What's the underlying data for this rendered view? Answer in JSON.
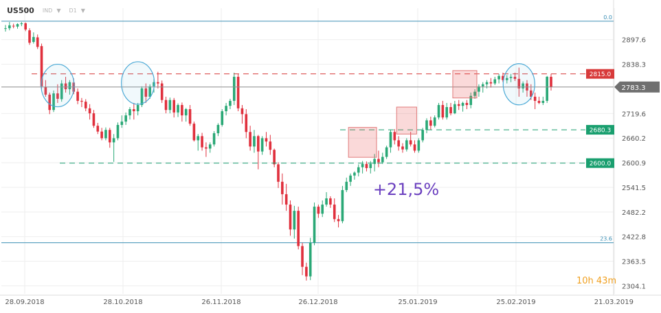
{
  "header": {
    "symbol": "US500",
    "market": "IND",
    "timeframe": "D1"
  },
  "timer": "10h 43m",
  "colors": {
    "up": "#2aa876",
    "down": "#e0303d",
    "up_light": "#9fd8bf",
    "down_light": "#eea3aa",
    "fibo": "#3b8fb5",
    "support": "#1a9f6f",
    "resistance": "#d83a3a",
    "price_line": "#8c8c8c",
    "annotation": "#6a3fbf",
    "timer": "#f0a020"
  },
  "chart_data": {
    "type": "candlestick",
    "title": "US500",
    "ylim": [
      2290,
      2960
    ],
    "y_ticks": [
      "2897.6",
      "2838.3",
      "2719.6",
      "2660.2",
      "2600.9",
      "2541.5",
      "2482.2",
      "2422.8",
      "2363.5",
      "2304.1"
    ],
    "x_ticks": [
      "28.09.2018",
      "28.10.2018",
      "26.11.2018",
      "26.12.2018",
      "25.01.2019",
      "25.02.2019",
      "21.03.2019"
    ],
    "fibonacci_levels": [
      {
        "label": "0.0",
        "value": 2942
      },
      {
        "label": "23.6",
        "value": 2408
      }
    ],
    "horizontal_levels": [
      {
        "label": "2815.0",
        "value": 2815.0,
        "style": "dashed",
        "kind": "resistance"
      },
      {
        "label": "2680.3",
        "value": 2680.3,
        "style": "dashed",
        "kind": "support"
      },
      {
        "label": "2600.0",
        "value": 2600.0,
        "style": "dashed",
        "kind": "support"
      }
    ],
    "current_price": {
      "label": "2783.3",
      "value": 2783.3
    },
    "annotation": "+21,5%",
    "candles": [
      [
        2925,
        2933,
        2917,
        2925
      ],
      [
        2925,
        2940,
        2920,
        2932
      ],
      [
        2931,
        2936,
        2925,
        2930
      ],
      [
        2929,
        2937,
        2924,
        2935
      ],
      [
        2935,
        2940,
        2930,
        2937
      ],
      [
        2937,
        2939,
        2918,
        2922
      ],
      [
        2920,
        2925,
        2885,
        2890
      ],
      [
        2892,
        2915,
        2888,
        2904
      ],
      [
        2903,
        2910,
        2875,
        2880
      ],
      [
        2882,
        2888,
        2778,
        2785
      ],
      [
        2784,
        2800,
        2760,
        2765
      ],
      [
        2765,
        2770,
        2718,
        2728
      ],
      [
        2728,
        2775,
        2723,
        2768
      ],
      [
        2768,
        2790,
        2745,
        2755
      ],
      [
        2754,
        2800,
        2748,
        2792
      ],
      [
        2792,
        2808,
        2770,
        2778
      ],
      [
        2778,
        2800,
        2765,
        2795
      ],
      [
        2794,
        2804,
        2766,
        2772
      ],
      [
        2772,
        2780,
        2742,
        2750
      ],
      [
        2750,
        2757,
        2735,
        2748
      ],
      [
        2748,
        2754,
        2725,
        2732
      ],
      [
        2732,
        2742,
        2705,
        2720
      ],
      [
        2720,
        2728,
        2685,
        2690
      ],
      [
        2690,
        2697,
        2670,
        2676
      ],
      [
        2676,
        2685,
        2655,
        2660
      ],
      [
        2660,
        2686,
        2655,
        2680
      ],
      [
        2680,
        2685,
        2637,
        2650
      ],
      [
        2650,
        2670,
        2603,
        2660
      ],
      [
        2660,
        2698,
        2655,
        2692
      ],
      [
        2692,
        2715,
        2685,
        2700
      ],
      [
        2700,
        2722,
        2692,
        2715
      ],
      [
        2715,
        2735,
        2705,
        2730
      ],
      [
        2730,
        2745,
        2705,
        2725
      ],
      [
        2725,
        2745,
        2715,
        2740
      ],
      [
        2740,
        2785,
        2735,
        2780
      ],
      [
        2780,
        2792,
        2745,
        2760
      ],
      [
        2760,
        2790,
        2755,
        2785
      ],
      [
        2785,
        2803,
        2770,
        2795
      ],
      [
        2795,
        2820,
        2780,
        2792
      ],
      [
        2792,
        2799,
        2745,
        2752
      ],
      [
        2752,
        2760,
        2720,
        2728
      ],
      [
        2728,
        2758,
        2720,
        2752
      ],
      [
        2752,
        2757,
        2710,
        2722
      ],
      [
        2722,
        2744,
        2711,
        2740
      ],
      [
        2740,
        2746,
        2700,
        2715
      ],
      [
        2715,
        2733,
        2700,
        2730
      ],
      [
        2730,
        2740,
        2690,
        2695
      ],
      [
        2695,
        2700,
        2652,
        2655
      ],
      [
        2655,
        2670,
        2630,
        2665
      ],
      [
        2665,
        2673,
        2630,
        2638
      ],
      [
        2638,
        2650,
        2615,
        2635
      ],
      [
        2635,
        2650,
        2625,
        2645
      ],
      [
        2645,
        2677,
        2640,
        2672
      ],
      [
        2672,
        2696,
        2665,
        2692
      ],
      [
        2692,
        2730,
        2688,
        2725
      ],
      [
        2725,
        2745,
        2715,
        2738
      ],
      [
        2738,
        2755,
        2730,
        2750
      ],
      [
        2750,
        2818,
        2740,
        2808
      ],
      [
        2808,
        2815,
        2725,
        2732
      ],
      [
        2732,
        2740,
        2695,
        2718
      ],
      [
        2718,
        2730,
        2660,
        2675
      ],
      [
        2675,
        2690,
        2630,
        2640
      ],
      [
        2640,
        2680,
        2625,
        2665
      ],
      [
        2665,
        2668,
        2585,
        2628
      ],
      [
        2628,
        2665,
        2620,
        2660
      ],
      [
        2660,
        2675,
        2640,
        2652
      ],
      [
        2652,
        2668,
        2620,
        2632
      ],
      [
        2632,
        2635,
        2590,
        2597
      ],
      [
        2597,
        2602,
        2540,
        2555
      ],
      [
        2555,
        2575,
        2500,
        2525
      ],
      [
        2525,
        2550,
        2485,
        2500
      ],
      [
        2500,
        2510,
        2425,
        2440
      ],
      [
        2440,
        2497,
        2418,
        2485
      ],
      [
        2485,
        2495,
        2392,
        2400
      ],
      [
        2400,
        2408,
        2330,
        2350
      ],
      [
        2350,
        2360,
        2317,
        2327
      ],
      [
        2327,
        2420,
        2318,
        2408
      ],
      [
        2408,
        2505,
        2402,
        2495
      ],
      [
        2495,
        2500,
        2468,
        2478
      ],
      [
        2478,
        2510,
        2470,
        2500
      ],
      [
        2500,
        2530,
        2495,
        2515
      ],
      [
        2515,
        2520,
        2492,
        2500
      ],
      [
        2500,
        2515,
        2458,
        2465
      ],
      [
        2465,
        2475,
        2445,
        2460
      ],
      [
        2460,
        2545,
        2455,
        2535
      ],
      [
        2535,
        2565,
        2530,
        2555
      ],
      [
        2555,
        2575,
        2545,
        2570
      ],
      [
        2570,
        2580,
        2560,
        2577
      ],
      [
        2577,
        2597,
        2568,
        2590
      ],
      [
        2590,
        2605,
        2575,
        2598
      ],
      [
        2598,
        2604,
        2580,
        2588
      ],
      [
        2588,
        2605,
        2575,
        2598
      ],
      [
        2598,
        2622,
        2580,
        2610
      ],
      [
        2610,
        2630,
        2590,
        2602
      ],
      [
        2602,
        2625,
        2598,
        2615
      ],
      [
        2615,
        2642,
        2610,
        2638
      ],
      [
        2638,
        2680,
        2625,
        2675
      ],
      [
        2675,
        2682,
        2645,
        2655
      ],
      [
        2655,
        2665,
        2630,
        2640
      ],
      [
        2640,
        2648,
        2625,
        2633
      ],
      [
        2633,
        2660,
        2628,
        2655
      ],
      [
        2655,
        2675,
        2640,
        2645
      ],
      [
        2645,
        2655,
        2625,
        2630
      ],
      [
        2630,
        2660,
        2625,
        2655
      ],
      [
        2655,
        2685,
        2650,
        2680
      ],
      [
        2680,
        2708,
        2672,
        2703
      ],
      [
        2703,
        2712,
        2680,
        2690
      ],
      [
        2690,
        2715,
        2686,
        2710
      ],
      [
        2710,
        2745,
        2705,
        2740
      ],
      [
        2740,
        2750,
        2705,
        2710
      ],
      [
        2710,
        2745,
        2705,
        2735
      ],
      [
        2735,
        2745,
        2715,
        2720
      ],
      [
        2720,
        2750,
        2718,
        2742
      ],
      [
        2742,
        2752,
        2728,
        2738
      ],
      [
        2738,
        2748,
        2724,
        2745
      ],
      [
        2745,
        2752,
        2730,
        2740
      ],
      [
        2740,
        2770,
        2732,
        2762
      ],
      [
        2762,
        2778,
        2755,
        2772
      ],
      [
        2772,
        2790,
        2760,
        2785
      ],
      [
        2785,
        2795,
        2770,
        2790
      ],
      [
        2790,
        2800,
        2780,
        2795
      ],
      [
        2795,
        2805,
        2782,
        2792
      ],
      [
        2792,
        2808,
        2788,
        2802
      ],
      [
        2802,
        2815,
        2792,
        2810
      ],
      [
        2810,
        2818,
        2795,
        2800
      ],
      [
        2800,
        2812,
        2792,
        2805
      ],
      [
        2805,
        2815,
        2795,
        2808
      ],
      [
        2808,
        2818,
        2798,
        2803
      ],
      [
        2803,
        2830,
        2760,
        2780
      ],
      [
        2780,
        2797,
        2770,
        2792
      ],
      [
        2792,
        2800,
        2760,
        2775
      ],
      [
        2775,
        2790,
        2752,
        2760
      ],
      [
        2760,
        2770,
        2730,
        2750
      ],
      [
        2750,
        2760,
        2742,
        2745
      ],
      [
        2745,
        2760,
        2740,
        2750
      ],
      [
        2750,
        2810,
        2745,
        2808
      ],
      [
        2808,
        2815,
        2775,
        2783.3
      ]
    ]
  }
}
